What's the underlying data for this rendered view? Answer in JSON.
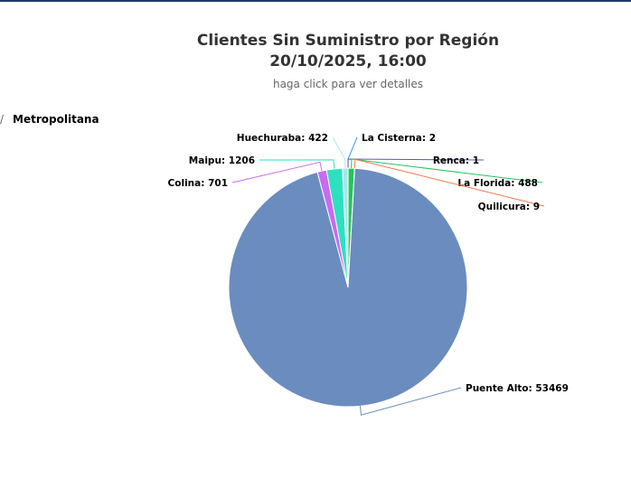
{
  "breadcrumb": {
    "separator": "/",
    "current": "Metropolitana"
  },
  "chart_data": {
    "type": "pie",
    "title": "Clientes Sin Suministro por Región",
    "title_date": "20/10/2025, 16:00",
    "subtitle": "haga click para ver detalles",
    "slices": [
      {
        "name": "La Cisterna",
        "value": 2,
        "color": "#3a9ee0"
      },
      {
        "name": "Renca",
        "value": 1,
        "color": "#5a5aa8"
      },
      {
        "name": "La Florida",
        "value": 488,
        "color": "#22c55e"
      },
      {
        "name": "Quilicura",
        "value": 9,
        "color": "#f07a4a"
      },
      {
        "name": "Puente Alto",
        "value": 53469,
        "color": "#6b8cbe"
      },
      {
        "name": "Colina",
        "value": 701,
        "color": "#c86bf0"
      },
      {
        "name": "Maipu",
        "value": 1206,
        "color": "#2ee0c0"
      },
      {
        "name": "Huechuraba",
        "value": 422,
        "color": "#a8e6ea"
      }
    ]
  }
}
